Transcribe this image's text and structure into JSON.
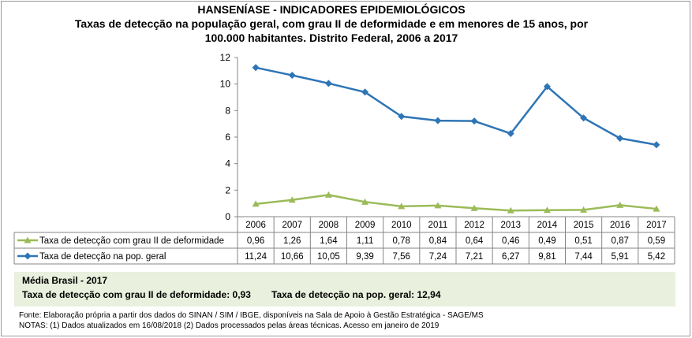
{
  "title": {
    "line1": "HANSENÍASE - INDICADORES EPIDEMIOLÓGICOS",
    "line2": "Taxas de detecção na população geral, com grau II de deformidade e em menores de 15 anos, por",
    "line3": "100.000 habitantes. Distrito Federal, 2006 a 2017"
  },
  "chart_data": {
    "type": "line",
    "title": "Taxas de detecção na população geral, com grau II de deformidade e em menores de 15 anos, por 100.000 habitantes. Distrito Federal, 2006 a 2017",
    "categories": [
      "2006",
      "2007",
      "2008",
      "2009",
      "2010",
      "2011",
      "2012",
      "2013",
      "2014",
      "2015",
      "2016",
      "2017"
    ],
    "ylim": [
      0,
      12
    ],
    "yticks": [
      "0",
      "2",
      "4",
      "6",
      "8",
      "10",
      "12"
    ],
    "xlabel": "",
    "ylabel": "",
    "grid": false,
    "data_table": true,
    "series": [
      {
        "name": "Taxa de detecção com grau II de deformidade",
        "values": [
          0.96,
          1.26,
          1.64,
          1.11,
          0.78,
          0.84,
          0.64,
          0.46,
          0.49,
          0.51,
          0.87,
          0.59
        ],
        "labels": [
          "0,96",
          "1,26",
          "1,64",
          "1,11",
          "0,78",
          "0,84",
          "0,64",
          "0,46",
          "0,49",
          "0,51",
          "0,87",
          "0,59"
        ],
        "color": "#9bbb59",
        "marker": "triangle"
      },
      {
        "name": "Taxa de detecção na pop. geral",
        "values": [
          11.24,
          10.66,
          10.05,
          9.39,
          7.56,
          7.24,
          7.21,
          6.27,
          9.81,
          7.44,
          5.91,
          5.42
        ],
        "labels": [
          "11,24",
          "10,66",
          "10,05",
          "9,39",
          "7,56",
          "7,24",
          "7,21",
          "6,27",
          "9,81",
          "7,44",
          "5,91",
          "5,42"
        ],
        "color": "#2e75b6",
        "marker": "diamond"
      }
    ]
  },
  "summary": {
    "heading": "Média Brasil - 2017",
    "item1": "Taxa de detecção com grau II de deformidade: 0,93",
    "item2": "Taxa de detecção na pop. geral: 12,94",
    "background": "#e9f0dd"
  },
  "footer": {
    "source": "Fonte:  Elaboração própria a partir dos dados do  SINAN / SIM / IBGE, disponíveis na Sala de Apoio à Gestão Estratégica -  SAGE/MS",
    "notes": " NOTAS: (1) Dados atualizados em 16/08/2018 (2) Dados processados pelas áreas técnicas. Acesso em janeiro de 2019"
  }
}
